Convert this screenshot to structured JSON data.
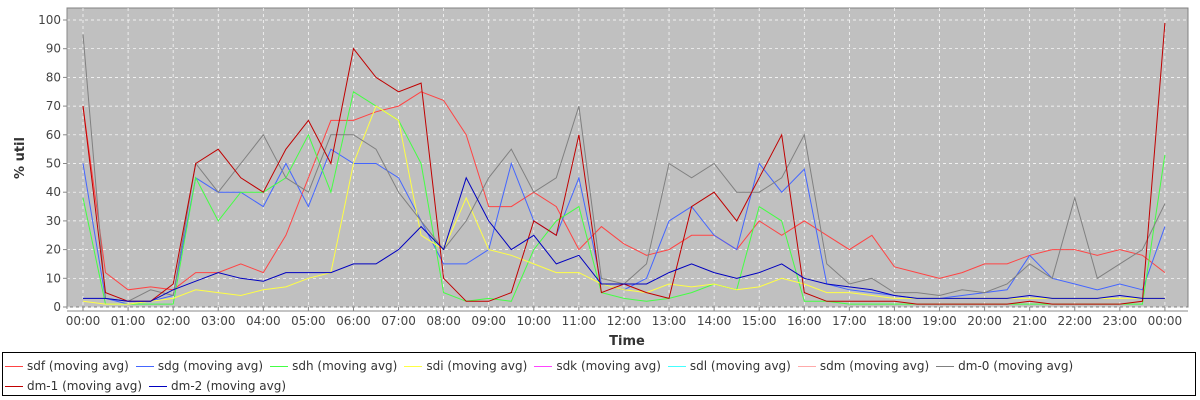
{
  "chart_data": {
    "type": "line",
    "xlabel": "Time",
    "ylabel": "% util",
    "ylim": [
      0,
      104
    ],
    "yticks": [
      "0",
      "10",
      "20",
      "30",
      "40",
      "50",
      "60",
      "70",
      "80",
      "90",
      "100"
    ],
    "xticks": [
      "00:00",
      "01:00",
      "02:00",
      "03:00",
      "04:00",
      "05:00",
      "06:00",
      "07:00",
      "08:00",
      "09:00",
      "10:00",
      "11:00",
      "12:00",
      "13:00",
      "14:00",
      "15:00",
      "16:00",
      "17:00",
      "18:00",
      "19:00",
      "20:00",
      "21:00",
      "22:00",
      "23:00",
      "00:00"
    ],
    "x_hours_step": 0.5,
    "grid": true,
    "legend_position": "bottom",
    "series": [
      {
        "name": "sdf (moving avg)",
        "color": "#ff4444",
        "values": [
          70,
          12,
          6,
          7,
          6,
          12,
          12,
          15,
          12,
          25,
          45,
          65,
          65,
          68,
          70,
          75,
          72,
          60,
          35,
          35,
          40,
          35,
          20,
          28,
          22,
          18,
          20,
          25,
          25,
          20,
          30,
          25,
          30,
          25,
          20,
          25,
          14,
          12,
          10,
          12,
          15,
          15,
          18,
          20,
          20,
          18,
          20,
          18,
          12
        ]
      },
      {
        "name": "sdg (moving avg)",
        "color": "#4466ff",
        "values": [
          50,
          3,
          1,
          2,
          4,
          45,
          40,
          40,
          35,
          50,
          35,
          55,
          50,
          50,
          45,
          30,
          15,
          15,
          20,
          50,
          30,
          25,
          45,
          8,
          6,
          10,
          30,
          35,
          25,
          20,
          50,
          40,
          48,
          8,
          6,
          5,
          4,
          3,
          3,
          4,
          5,
          6,
          18,
          10,
          8,
          6,
          8,
          6,
          28
        ]
      },
      {
        "name": "sdh (moving avg)",
        "color": "#44ff44",
        "values": [
          38,
          1,
          1,
          1,
          1,
          45,
          30,
          40,
          40,
          45,
          60,
          40,
          75,
          70,
          65,
          50,
          5,
          2,
          3,
          2,
          20,
          30,
          35,
          5,
          3,
          2,
          3,
          5,
          8,
          6,
          35,
          30,
          2,
          2,
          1,
          1,
          1,
          1,
          1,
          1,
          1,
          1,
          1,
          1,
          1,
          1,
          1,
          1,
          53
        ]
      },
      {
        "name": "sdi (moving avg)",
        "color": "#ffff44",
        "values": [
          2,
          1,
          1,
          2,
          3,
          6,
          5,
          4,
          6,
          7,
          10,
          12,
          50,
          70,
          65,
          25,
          20,
          38,
          20,
          18,
          15,
          12,
          12,
          8,
          6,
          5,
          8,
          7,
          8,
          6,
          7,
          10,
          8,
          5,
          5,
          4,
          3,
          3,
          3,
          3,
          3,
          3,
          3,
          3,
          3,
          3,
          3,
          3,
          3
        ]
      },
      {
        "name": "sdk (moving avg)",
        "color": "#ff44ff",
        "values": []
      },
      {
        "name": "sdl (moving avg)",
        "color": "#44ffff",
        "values": []
      },
      {
        "name": "sdm (moving avg)",
        "color": "#ffaaaa",
        "values": []
      },
      {
        "name": "dm-0 (moving avg)",
        "color": "#808080",
        "values": [
          95,
          3,
          2,
          6,
          4,
          50,
          40,
          50,
          60,
          45,
          40,
          60,
          60,
          55,
          40,
          30,
          20,
          30,
          45,
          55,
          40,
          45,
          70,
          10,
          8,
          15,
          50,
          45,
          50,
          40,
          40,
          45,
          60,
          15,
          8,
          10,
          5,
          5,
          4,
          6,
          5,
          8,
          15,
          10,
          38,
          10,
          15,
          20,
          36
        ]
      },
      {
        "name": "dm-1 (moving avg)",
        "color": "#c00000",
        "values": [
          70,
          5,
          2,
          2,
          8,
          50,
          55,
          45,
          40,
          55,
          65,
          50,
          90,
          80,
          75,
          78,
          10,
          2,
          2,
          5,
          30,
          25,
          60,
          5,
          8,
          5,
          3,
          35,
          40,
          30,
          45,
          60,
          5,
          2,
          2,
          2,
          2,
          1,
          1,
          1,
          1,
          1,
          2,
          1,
          1,
          1,
          1,
          2,
          99
        ]
      },
      {
        "name": "dm-2 (moving avg)",
        "color": "#0000c0",
        "values": [
          3,
          3,
          2,
          2,
          6,
          9,
          12,
          10,
          9,
          12,
          12,
          12,
          15,
          15,
          20,
          28,
          20,
          45,
          30,
          20,
          25,
          15,
          18,
          8,
          8,
          8,
          12,
          15,
          12,
          10,
          12,
          15,
          10,
          8,
          7,
          6,
          4,
          3,
          3,
          3,
          3,
          3,
          4,
          3,
          3,
          3,
          4,
          3,
          3
        ]
      }
    ]
  }
}
